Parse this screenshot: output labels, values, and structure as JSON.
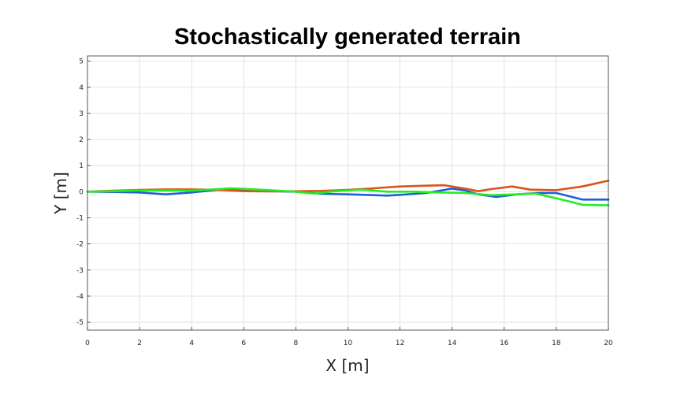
{
  "chart_data": {
    "type": "line",
    "title": "Stochastically generated terrain",
    "xlabel": "X [m]",
    "ylabel": "Y [m]",
    "xlim": [
      0,
      20
    ],
    "ylim": [
      -5.3,
      5.2
    ],
    "xticks": [
      0,
      2,
      4,
      6,
      8,
      10,
      12,
      14,
      16,
      18,
      20
    ],
    "yticks": [
      -5,
      -4,
      -3,
      -2,
      -1,
      0,
      1,
      2,
      3,
      4,
      5
    ],
    "grid": true,
    "legend": "none",
    "series": [
      {
        "color": "#1f5fd6",
        "x": [
          0,
          1,
          2,
          3,
          4,
          5,
          6,
          7,
          8,
          9,
          10,
          11,
          11.5,
          12,
          13,
          14,
          14.5,
          15,
          15.7,
          16.5,
          17.3,
          18,
          19,
          20
        ],
        "y": [
          0,
          -0.01,
          -0.03,
          -0.1,
          -0.03,
          0.07,
          0.05,
          0.02,
          0,
          -0.08,
          -0.1,
          -0.13,
          -0.15,
          -0.12,
          -0.05,
          0.12,
          0.05,
          -0.1,
          -0.2,
          -0.1,
          -0.05,
          -0.05,
          -0.3,
          -0.3
        ]
      },
      {
        "color": "#d9541c",
        "x": [
          0,
          1,
          2,
          3,
          4,
          5,
          6,
          7,
          8,
          9,
          10,
          11,
          12,
          13,
          13.7,
          14.5,
          15,
          15.5,
          16.3,
          17,
          18,
          19,
          20
        ],
        "y": [
          0,
          0.04,
          0.07,
          0.09,
          0.09,
          0.07,
          0.02,
          0.01,
          0.02,
          0.03,
          0.07,
          0.13,
          0.2,
          0.23,
          0.25,
          0.12,
          0.02,
          0.1,
          0.2,
          0.08,
          0.06,
          0.2,
          0.42
        ]
      },
      {
        "color": "#22ee22",
        "x": [
          0,
          1,
          2,
          3,
          4,
          5,
          5.5,
          6,
          7,
          8,
          8.7,
          9.5,
          10.5,
          11.5,
          12.5,
          13.5,
          14.5,
          15.5,
          16.5,
          17.2,
          18,
          19,
          20
        ],
        "y": [
          0,
          0.02,
          0.05,
          0.05,
          0.04,
          0.1,
          0.13,
          0.11,
          0.06,
          0,
          -0.07,
          0.02,
          0.08,
          0,
          0,
          -0.03,
          -0.05,
          -0.13,
          -0.1,
          -0.07,
          -0.25,
          -0.5,
          -0.52
        ]
      }
    ]
  }
}
